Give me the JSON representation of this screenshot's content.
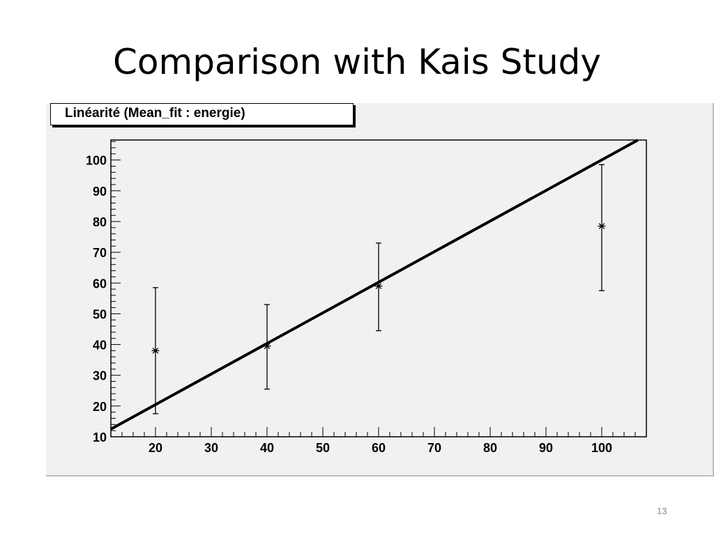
{
  "slide": {
    "title": "Comparison with Kais Study",
    "page_number": "13"
  },
  "chart_data": {
    "type": "scatter",
    "title": "Linéarité (Mean_fit : energie)",
    "xlabel": "",
    "ylabel": "",
    "xlim": [
      12,
      108
    ],
    "ylim": [
      10,
      106.5
    ],
    "x_ticks": [
      20,
      30,
      40,
      50,
      60,
      70,
      80,
      90,
      100
    ],
    "y_ticks": [
      10,
      20,
      30,
      40,
      50,
      60,
      70,
      80,
      90,
      100
    ],
    "grid": false,
    "series": [
      {
        "type": "scatter_errorbars",
        "marker": "star",
        "x": [
          20,
          40,
          60,
          100
        ],
        "y": [
          38,
          39.5,
          59,
          78.5
        ],
        "y_err_low": [
          17.5,
          25.5,
          44.5,
          57.5
        ],
        "y_err_high": [
          58.5,
          53,
          73,
          98.5
        ]
      },
      {
        "type": "line",
        "x": [
          12,
          106.5
        ],
        "y": [
          12.5,
          106.5
        ]
      }
    ]
  }
}
